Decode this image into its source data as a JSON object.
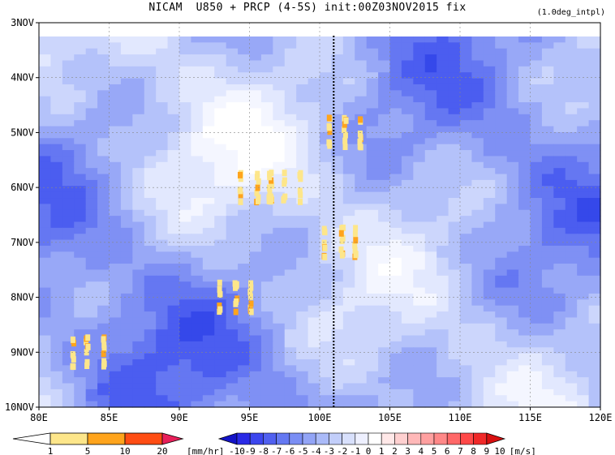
{
  "title": "NICAM  U850 + PRCP (4-5S) init:00Z03NOV2015 fix",
  "subtitle": "(1.0deg_intpl)",
  "chart_data": {
    "type": "heatmap",
    "x_axis": {
      "ticks": [
        "80E",
        "85E",
        "90E",
        "95E",
        "100E",
        "105E",
        "110E",
        "115E",
        "120E"
      ],
      "range": [
        80,
        120
      ],
      "unit": "deg E"
    },
    "y_axis": {
      "ticks": [
        "3NOV",
        "4NOV",
        "5NOV",
        "6NOV",
        "7NOV",
        "8NOV",
        "9NOV",
        "10NOV"
      ],
      "range": [
        "3NOV",
        "10NOV"
      ],
      "direction": "time increases downward"
    },
    "init_marker_longitude": 101,
    "grid": true,
    "fields": [
      {
        "name": "U850",
        "unit": "[m/s]",
        "levels": [
          "-10",
          "-9",
          "-8",
          "-7",
          "-6",
          "-5",
          "-4",
          "-3",
          "-2",
          "-1",
          "0",
          "1",
          "2",
          "3",
          "4",
          "5",
          "6",
          "7",
          "8",
          "9",
          "10"
        ]
      },
      {
        "name": "PRCP",
        "unit": "[mm/hr]",
        "levels": [
          "1",
          "5",
          "10",
          "20"
        ]
      }
    ],
    "precip_clusters": [
      {
        "lon": 95.5,
        "time": "6NOV",
        "intensity_mmhr": 10
      },
      {
        "lon": 97.5,
        "time": "6NOV",
        "intensity_mmhr": 5
      },
      {
        "lon": 101.8,
        "time": "5NOV",
        "intensity_mmhr": 10
      },
      {
        "lon": 94,
        "time": "8NOV",
        "intensity_mmhr": 10
      },
      {
        "lon": 83.5,
        "time": "9NOV",
        "intensity_mmhr": 10
      },
      {
        "lon": 101.5,
        "time": "7NOV",
        "intensity_mmhr": 10
      }
    ]
  },
  "colorbar_precip": {
    "labels": [
      "1",
      "5",
      "10",
      "20"
    ],
    "unit": "[mm/hr]",
    "colors": [
      "#ffffff",
      "#fde68a",
      "#ffa41c",
      "#ff4d13",
      "#e8205a"
    ]
  },
  "colorbar_wind": {
    "labels": [
      "-10",
      "-9",
      "-8",
      "-7",
      "-6",
      "-5",
      "-4",
      "-3",
      "-2",
      "-1",
      "0",
      "1",
      "2",
      "3",
      "4",
      "5",
      "6",
      "7",
      "8",
      "9",
      "10"
    ],
    "unit": "[m/s]",
    "colors": [
      "#1414c8",
      "#2a2ae6",
      "#3c46ee",
      "#5060f0",
      "#6478f2",
      "#7a8ef4",
      "#92a4f6",
      "#aabaf8",
      "#c2cefa",
      "#d8e0fc",
      "#eef0ff",
      "#ffffff",
      "#ffe8e8",
      "#ffd0d0",
      "#ffb8b8",
      "#ffa0a0",
      "#ff8888",
      "#ff6868",
      "#ff4848",
      "#f02828",
      "#d81010"
    ]
  }
}
